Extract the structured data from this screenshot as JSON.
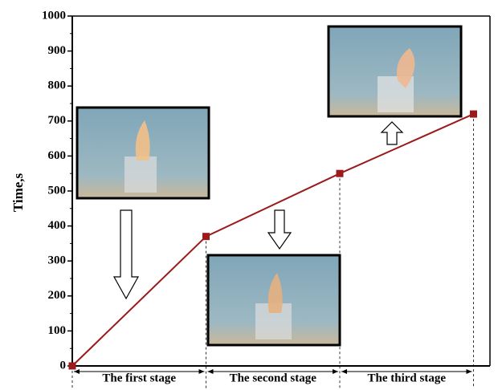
{
  "chart_data": {
    "type": "line",
    "ylabel": "Time,s",
    "categories": [
      null,
      null,
      null,
      null
    ],
    "values": [
      0,
      370,
      550,
      720
    ],
    "color": "#9b1b1b",
    "ylim": [
      0,
      1000
    ],
    "yticks": [
      0,
      100,
      200,
      300,
      400,
      500,
      600,
      700,
      800,
      900,
      1000
    ],
    "annotations": [
      "The first stage",
      "The second stage",
      "The third stage"
    ]
  }
}
